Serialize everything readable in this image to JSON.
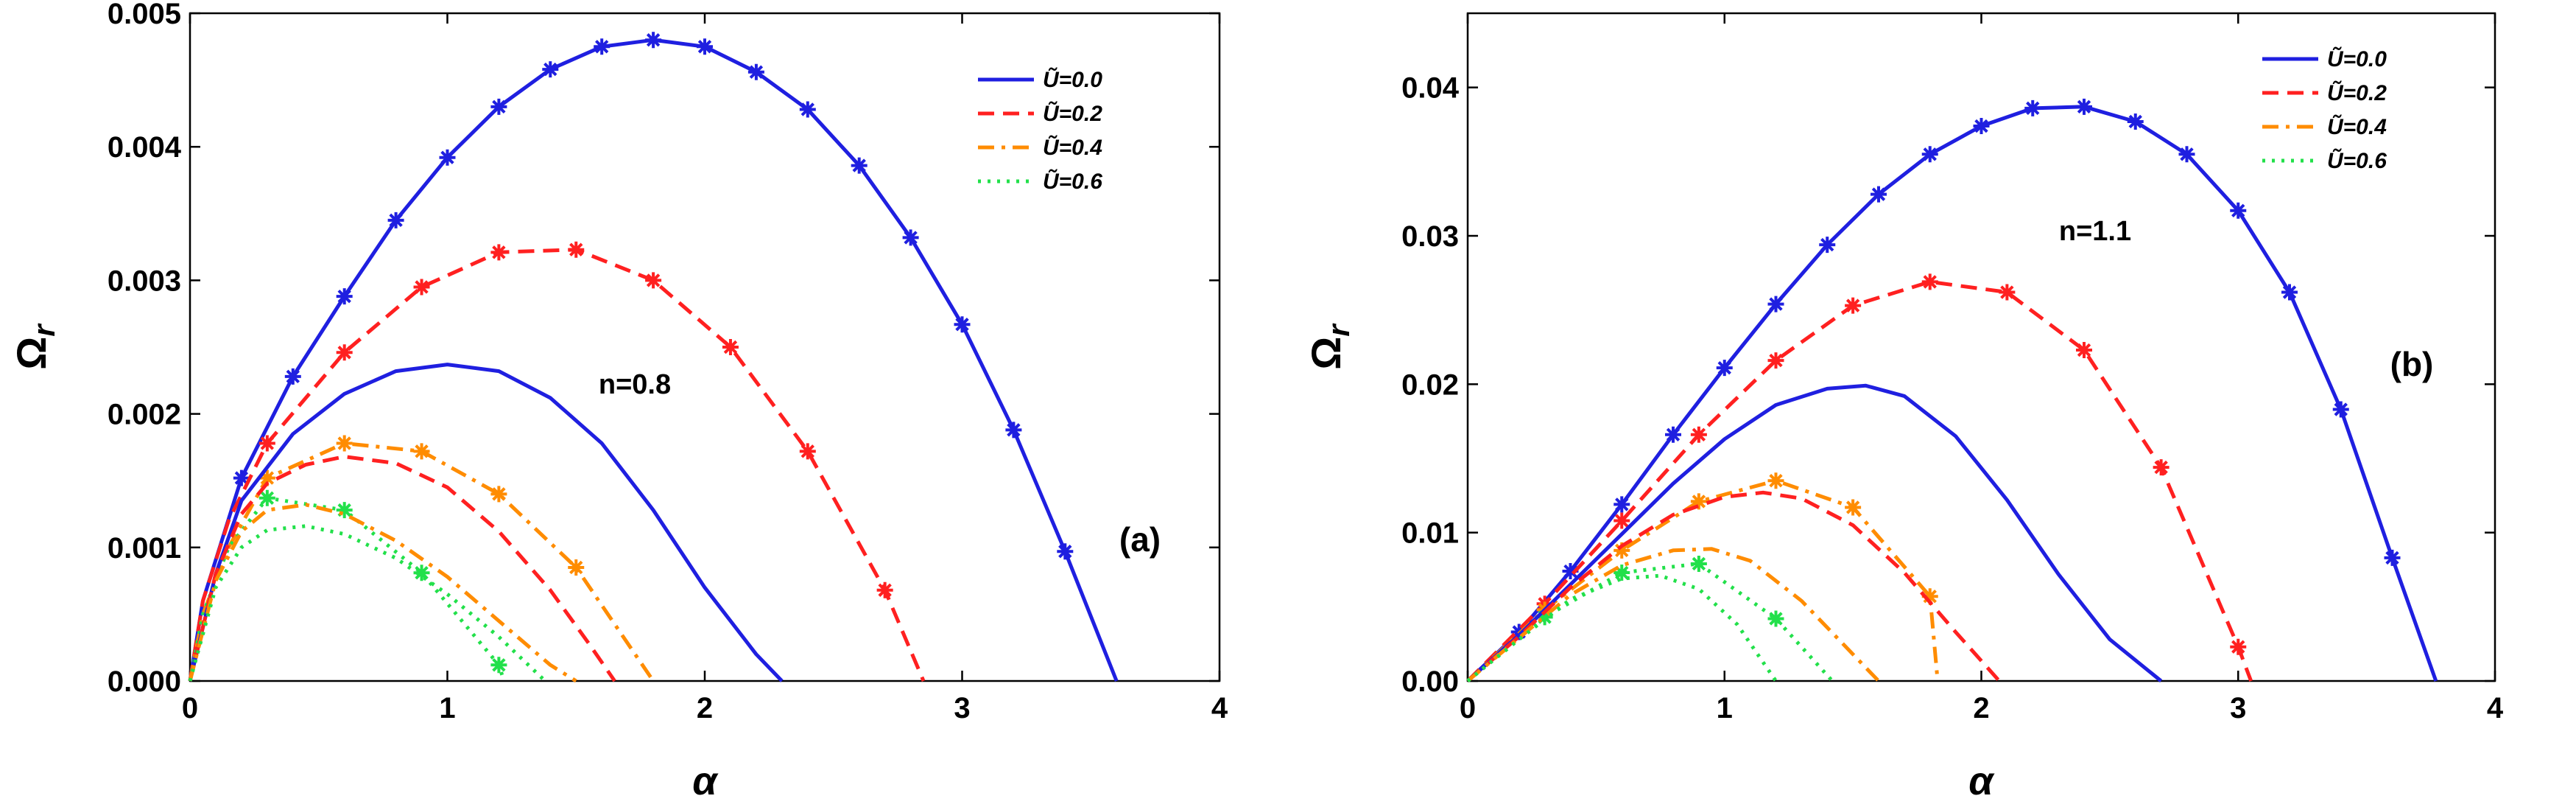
{
  "colors": {
    "U0": "#1f1fe0",
    "U02": "#ff2020",
    "U04": "#ff8c00",
    "U06": "#22e04a"
  },
  "chart_data": [
    {
      "type": "line",
      "panel_label": "(a)",
      "annotation": "n=0.8",
      "xlabel": "α",
      "ylabel_main": "Ω",
      "ylabel_sub": "r",
      "xlim": [
        0,
        4
      ],
      "ylim": [
        0,
        0.005
      ],
      "xticks": [
        0,
        1,
        2,
        3,
        4
      ],
      "xtick_labels": [
        "0",
        "1",
        "2",
        "3",
        "4"
      ],
      "yticks": [
        0,
        0.001,
        0.002,
        0.003,
        0.004,
        0.005
      ],
      "ytick_labels": [
        "0.000",
        "0.001",
        "0.002",
        "0.003",
        "0.004",
        "0.005"
      ],
      "legend_position": "top-right",
      "legend": [
        {
          "label": "Ũ=0.0",
          "color_key": "U0",
          "dash": "solid"
        },
        {
          "label": "Ũ=0.2",
          "color_key": "U02",
          "dash": "dashed"
        },
        {
          "label": "Ũ=0.4",
          "color_key": "U04",
          "dash": "dashdot"
        },
        {
          "label": "Ũ=0.6",
          "color_key": "U06",
          "dash": "dotted"
        }
      ],
      "series": [
        {
          "name": "Ũ=0.0 (markers)",
          "color_key": "U0",
          "dash": "solid",
          "markers": true,
          "x": [
            0,
            0.05,
            0.2,
            0.4,
            0.6,
            0.8,
            1.0,
            1.2,
            1.4,
            1.6,
            1.8,
            2.0,
            2.2,
            2.4,
            2.6,
            2.8,
            3.0,
            3.2,
            3.4,
            3.6
          ],
          "y": [
            0,
            0.0006,
            0.00152,
            0.00228,
            0.00288,
            0.00345,
            0.00392,
            0.0043,
            0.00458,
            0.00475,
            0.0048,
            0.00475,
            0.00456,
            0.00428,
            0.00386,
            0.00332,
            0.00267,
            0.00188,
            0.00097,
            0
          ],
          "marker_x": [
            0.2,
            0.4,
            0.6,
            0.8,
            1.0,
            1.2,
            1.4,
            1.6,
            1.8,
            2.0,
            2.2,
            2.4,
            2.6,
            2.8,
            3.0,
            3.2,
            3.4
          ]
        },
        {
          "name": "Ũ=0.2 (markers)",
          "color_key": "U02",
          "dash": "dashed",
          "markers": true,
          "x": [
            0,
            0.05,
            0.15,
            0.3,
            0.6,
            0.9,
            1.2,
            1.5,
            1.8,
            2.1,
            2.4,
            2.7,
            2.85
          ],
          "y": [
            0,
            0.0006,
            0.0012,
            0.00178,
            0.00246,
            0.00295,
            0.00321,
            0.00323,
            0.003,
            0.0025,
            0.00172,
            0.00068,
            0
          ],
          "marker_x": [
            0.3,
            0.6,
            0.9,
            1.2,
            1.5,
            1.8,
            2.1,
            2.4,
            2.7
          ]
        },
        {
          "name": "Ũ=0.4 (markers)",
          "color_key": "U04",
          "dash": "dashdot",
          "markers": true,
          "x": [
            0,
            0.05,
            0.15,
            0.3,
            0.6,
            0.9,
            1.2,
            1.5,
            1.8
          ],
          "y": [
            0,
            0.0005,
            0.001,
            0.00152,
            0.00178,
            0.00172,
            0.0014,
            0.00085,
            0
          ],
          "marker_x": [
            0.3,
            0.6,
            0.9,
            1.2,
            1.5
          ]
        },
        {
          "name": "Ũ=0.6 (markers)",
          "color_key": "U06",
          "dash": "dotted",
          "markers": true,
          "x": [
            0,
            0.05,
            0.15,
            0.3,
            0.6,
            0.9,
            1.2,
            1.22
          ],
          "y": [
            0,
            0.0005,
            0.001,
            0.00137,
            0.00128,
            0.00081,
            0.00012,
            0
          ],
          "marker_x": [
            0.3,
            0.6,
            0.9,
            1.2
          ]
        },
        {
          "name": "Ũ=0.0",
          "color_key": "U0",
          "dash": "solid",
          "markers": false,
          "x": [
            0,
            0.1,
            0.2,
            0.4,
            0.6,
            0.8,
            1.0,
            1.2,
            1.4,
            1.6,
            1.8,
            2.0,
            2.2,
            2.3
          ],
          "y": [
            0,
            0.0008,
            0.00135,
            0.00185,
            0.00215,
            0.00232,
            0.00237,
            0.00232,
            0.00212,
            0.00178,
            0.00128,
            0.0007,
            0.0002,
            0
          ],
          "marker_x": []
        },
        {
          "name": "Ũ=0.2",
          "color_key": "U02",
          "dash": "dashed",
          "markers": false,
          "x": [
            0,
            0.1,
            0.2,
            0.3,
            0.45,
            0.6,
            0.8,
            1.0,
            1.2,
            1.4,
            1.55,
            1.65
          ],
          "y": [
            0,
            0.0008,
            0.00125,
            0.00148,
            0.00162,
            0.00168,
            0.00163,
            0.00145,
            0.00112,
            0.00068,
            0.00028,
            0
          ],
          "marker_x": []
        },
        {
          "name": "Ũ=0.4",
          "color_key": "U04",
          "dash": "dashdot",
          "markers": false,
          "x": [
            0,
            0.1,
            0.2,
            0.3,
            0.45,
            0.6,
            0.8,
            1.0,
            1.2,
            1.4,
            1.5
          ],
          "y": [
            0,
            0.00075,
            0.00112,
            0.00128,
            0.00132,
            0.00125,
            0.00105,
            0.00078,
            0.00045,
            0.00012,
            0
          ],
          "marker_x": []
        },
        {
          "name": "Ũ=0.6",
          "color_key": "U06",
          "dash": "dotted",
          "markers": false,
          "x": [
            0,
            0.1,
            0.2,
            0.3,
            0.45,
            0.6,
            0.8,
            1.0,
            1.2,
            1.38
          ],
          "y": [
            0,
            0.0007,
            0.001,
            0.00113,
            0.00116,
            0.0011,
            0.00092,
            0.00065,
            0.00033,
            0
          ],
          "marker_x": []
        }
      ]
    },
    {
      "type": "line",
      "panel_label": "(b)",
      "annotation": "n=1.1",
      "xlabel": "α",
      "ylabel_main": "Ω",
      "ylabel_sub": "r",
      "xlim": [
        0,
        4
      ],
      "ylim": [
        0,
        0.045
      ],
      "xticks": [
        0,
        1,
        2,
        3,
        4
      ],
      "xtick_labels": [
        "0",
        "1",
        "2",
        "3",
        "4"
      ],
      "yticks": [
        0,
        0.01,
        0.02,
        0.03,
        0.04
      ],
      "ytick_labels": [
        "0.00",
        "0.01",
        "0.02",
        "0.03",
        "0.04"
      ],
      "legend_position": "top-right",
      "legend": [
        {
          "label": "Ũ=0.0",
          "color_key": "U0",
          "dash": "solid"
        },
        {
          "label": "Ũ=0.2",
          "color_key": "U02",
          "dash": "dashed"
        },
        {
          "label": "Ũ=0.4",
          "color_key": "U04",
          "dash": "dashdot"
        },
        {
          "label": "Ũ=0.6",
          "color_key": "U06",
          "dash": "dotted"
        }
      ],
      "series": [
        {
          "name": "Ũ=0.0 (markers)",
          "color_key": "U0",
          "dash": "solid",
          "markers": true,
          "x": [
            0,
            0.2,
            0.4,
            0.6,
            0.8,
            1.0,
            1.2,
            1.4,
            1.6,
            1.8,
            2.0,
            2.2,
            2.4,
            2.6,
            2.8,
            3.0,
            3.2,
            3.4,
            3.6,
            3.77
          ],
          "y": [
            0,
            0.0033,
            0.0074,
            0.0119,
            0.0166,
            0.0211,
            0.0254,
            0.0294,
            0.0328,
            0.0355,
            0.0374,
            0.0386,
            0.0387,
            0.0377,
            0.0355,
            0.0317,
            0.0262,
            0.0183,
            0.0083,
            0
          ],
          "marker_x": [
            0.2,
            0.4,
            0.6,
            0.8,
            1.0,
            1.2,
            1.4,
            1.6,
            1.8,
            2.0,
            2.2,
            2.4,
            2.6,
            2.8,
            3.0,
            3.2,
            3.4,
            3.6
          ]
        },
        {
          "name": "Ũ=0.2 (markers)",
          "color_key": "U02",
          "dash": "dashed",
          "markers": true,
          "x": [
            0,
            0.3,
            0.6,
            0.9,
            1.2,
            1.5,
            1.8,
            2.1,
            2.4,
            2.7,
            3.0,
            3.05
          ],
          "y": [
            0,
            0.0052,
            0.0108,
            0.0166,
            0.0216,
            0.0253,
            0.0269,
            0.0262,
            0.0223,
            0.0144,
            0.0023,
            0
          ],
          "marker_x": [
            0.3,
            0.6,
            0.9,
            1.2,
            1.5,
            1.8,
            2.1,
            2.4,
            2.7,
            3.0
          ]
        },
        {
          "name": "Ũ=0.4 (markers)",
          "color_key": "U04",
          "dash": "dashdot",
          "markers": true,
          "x": [
            0,
            0.3,
            0.6,
            0.9,
            1.2,
            1.5,
            1.8,
            1.83
          ],
          "y": [
            0,
            0.0048,
            0.0088,
            0.0121,
            0.0135,
            0.0117,
            0.0057,
            0
          ],
          "marker_x": [
            0.3,
            0.6,
            0.9,
            1.2,
            1.5,
            1.8
          ]
        },
        {
          "name": "Ũ=0.6 (markers)",
          "color_key": "U06",
          "dash": "dotted",
          "markers": true,
          "x": [
            0,
            0.3,
            0.6,
            0.9,
            1.2,
            1.42
          ],
          "y": [
            0,
            0.0043,
            0.0073,
            0.0079,
            0.0042,
            0
          ],
          "marker_x": [
            0.3,
            0.6,
            0.9,
            1.2
          ]
        },
        {
          "name": "Ũ=0.0",
          "color_key": "U0",
          "dash": "solid",
          "markers": false,
          "x": [
            0,
            0.2,
            0.4,
            0.6,
            0.8,
            1.0,
            1.2,
            1.4,
            1.55,
            1.7,
            1.9,
            2.1,
            2.3,
            2.5,
            2.7
          ],
          "y": [
            0,
            0.0031,
            0.0065,
            0.0099,
            0.0133,
            0.0163,
            0.0186,
            0.0197,
            0.0199,
            0.0192,
            0.0165,
            0.0122,
            0.0072,
            0.0028,
            0
          ],
          "marker_x": []
        },
        {
          "name": "Ũ=0.2",
          "color_key": "U02",
          "dash": "dashed",
          "markers": false,
          "x": [
            0,
            0.2,
            0.4,
            0.6,
            0.8,
            1.0,
            1.15,
            1.3,
            1.5,
            1.7,
            1.9,
            2.07
          ],
          "y": [
            0,
            0.003,
            0.0063,
            0.0091,
            0.0112,
            0.0124,
            0.0127,
            0.0123,
            0.0105,
            0.0073,
            0.0033,
            0
          ],
          "marker_x": []
        },
        {
          "name": "Ũ=0.4",
          "color_key": "U04",
          "dash": "dashdot",
          "markers": false,
          "x": [
            0,
            0.2,
            0.4,
            0.6,
            0.8,
            0.95,
            1.1,
            1.3,
            1.45,
            1.6
          ],
          "y": [
            0,
            0.0029,
            0.0058,
            0.0078,
            0.0088,
            0.0089,
            0.0081,
            0.0054,
            0.0027,
            0
          ],
          "marker_x": []
        },
        {
          "name": "Ũ=0.6",
          "color_key": "U06",
          "dash": "dotted",
          "markers": false,
          "x": [
            0,
            0.2,
            0.4,
            0.6,
            0.75,
            0.9,
            1.05,
            1.2
          ],
          "y": [
            0,
            0.0028,
            0.0055,
            0.0069,
            0.0071,
            0.0062,
            0.0038,
            0
          ],
          "marker_x": []
        }
      ]
    }
  ]
}
